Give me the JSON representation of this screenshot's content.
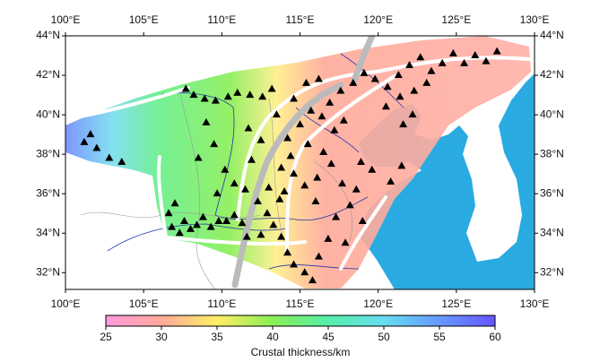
{
  "map": {
    "xlim": [
      100,
      130
    ],
    "ylim": [
      31.15,
      44
    ],
    "xticks": [
      {
        "value": 100,
        "label": "100°E"
      },
      {
        "value": 105,
        "label": "105°E"
      },
      {
        "value": 110,
        "label": "110°E"
      },
      {
        "value": 115,
        "label": "115°E"
      },
      {
        "value": 120,
        "label": "120°E"
      },
      {
        "value": 125,
        "label": "125°E"
      },
      {
        "value": 130,
        "label": "130°E"
      }
    ],
    "yticks": [
      {
        "value": 32,
        "label": "32°N"
      },
      {
        "value": 34,
        "label": "34°N"
      },
      {
        "value": 36,
        "label": "36°N"
      },
      {
        "value": 38,
        "label": "38°N"
      },
      {
        "value": 40,
        "label": "40°N"
      },
      {
        "value": 42,
        "label": "42°N"
      },
      {
        "value": 44,
        "label": "44°N"
      }
    ],
    "stations": [
      [
        101.2,
        38.6
      ],
      [
        102,
        38.3
      ],
      [
        102.8,
        37.8
      ],
      [
        103.6,
        37.6
      ],
      [
        101.6,
        39.0
      ],
      [
        106.6,
        35.0
      ],
      [
        106.8,
        34.3
      ],
      [
        107.0,
        35.5
      ],
      [
        107.3,
        34.0
      ],
      [
        107.6,
        34.6
      ],
      [
        108,
        34.2
      ],
      [
        108.4,
        34.4
      ],
      [
        108.8,
        34.8
      ],
      [
        109.3,
        34.3
      ],
      [
        109.8,
        34.6
      ],
      [
        110.3,
        34.6
      ],
      [
        110.8,
        34.9
      ],
      [
        111.3,
        34.5
      ],
      [
        107.7,
        41.3
      ],
      [
        108.2,
        41.0
      ],
      [
        108.9,
        40.8
      ],
      [
        109.6,
        40.7
      ],
      [
        110.4,
        40.9
      ],
      [
        111.0,
        41.1
      ],
      [
        111.8,
        41.0
      ],
      [
        112.6,
        40.9
      ],
      [
        113.2,
        41.3
      ],
      [
        109.0,
        39.6
      ],
      [
        109.5,
        38.5
      ],
      [
        108.5,
        37.8
      ],
      [
        110.2,
        37.2
      ],
      [
        110.8,
        36.5
      ],
      [
        109.7,
        36.0
      ],
      [
        111.5,
        36.2
      ],
      [
        111.9,
        37.7
      ],
      [
        112.5,
        38.7
      ],
      [
        111.7,
        39.3
      ],
      [
        112.3,
        35.6
      ],
      [
        112.9,
        35.0
      ],
      [
        113.3,
        34.4
      ],
      [
        113.8,
        33.8
      ],
      [
        114.2,
        33.0
      ],
      [
        114.6,
        32.4
      ],
      [
        115.3,
        32.0
      ],
      [
        115.8,
        31.6
      ],
      [
        116.2,
        32.8
      ],
      [
        116.8,
        33.7
      ],
      [
        117.3,
        34.8
      ],
      [
        116.0,
        35.6
      ],
      [
        115.3,
        36.4
      ],
      [
        114.6,
        37.0
      ],
      [
        114.4,
        37.9
      ],
      [
        114.2,
        38.8
      ],
      [
        114.0,
        36.1
      ],
      [
        113.8,
        37.3
      ],
      [
        113.7,
        35.7
      ],
      [
        115.0,
        39.5
      ],
      [
        115.7,
        40.2
      ],
      [
        116.4,
        39.9
      ],
      [
        117.2,
        39.2
      ],
      [
        117.8,
        39.7
      ],
      [
        116.9,
        40.6
      ],
      [
        117.6,
        41.2
      ],
      [
        118.4,
        41.6
      ],
      [
        119.1,
        42.1
      ],
      [
        119.8,
        41.8
      ],
      [
        120.6,
        41.4
      ],
      [
        121.3,
        42.0
      ],
      [
        122.0,
        42.5
      ],
      [
        122.7,
        42.9
      ],
      [
        123.4,
        42.2
      ],
      [
        124.1,
        42.6
      ],
      [
        124.8,
        43.1
      ],
      [
        125.5,
        42.6
      ],
      [
        126.2,
        43.0
      ],
      [
        126.9,
        42.7
      ],
      [
        127.6,
        43.2
      ],
      [
        120.5,
        40.4
      ],
      [
        121.4,
        40.9
      ],
      [
        122.3,
        41.2
      ],
      [
        123.1,
        41.6
      ],
      [
        121.6,
        39.5
      ],
      [
        122.2,
        40.0
      ],
      [
        118.9,
        37.6
      ],
      [
        119.6,
        37.2
      ],
      [
        120.8,
        36.6
      ],
      [
        121.5,
        37.4
      ],
      [
        118.6,
        36.2
      ],
      [
        117.7,
        36.5
      ],
      [
        118.2,
        35.4
      ],
      [
        119.0,
        34.6
      ],
      [
        117.9,
        33.5
      ],
      [
        116.1,
        36.8
      ],
      [
        116.5,
        38.1
      ],
      [
        115.5,
        38.5
      ],
      [
        117.0,
        37.5
      ],
      [
        111.6,
        33.8
      ],
      [
        112.5,
        33.9
      ],
      [
        113.0,
        36.3
      ],
      [
        113.5,
        40.0
      ],
      [
        114.6,
        40.8
      ],
      [
        115.4,
        41.6
      ],
      [
        116.2,
        41.8
      ]
    ],
    "station_color": "#000000"
  },
  "colorbar": {
    "range": [
      25,
      60
    ],
    "ticks": [
      25,
      30,
      35,
      40,
      45,
      50,
      55,
      60
    ],
    "colors": [
      "#ff99dd",
      "#ffaa99",
      "#ffee66",
      "#88ee55",
      "#55eeaa",
      "#66ddee",
      "#6699ff",
      "#6655ff"
    ],
    "label": "Crustal thickness/km"
  }
}
